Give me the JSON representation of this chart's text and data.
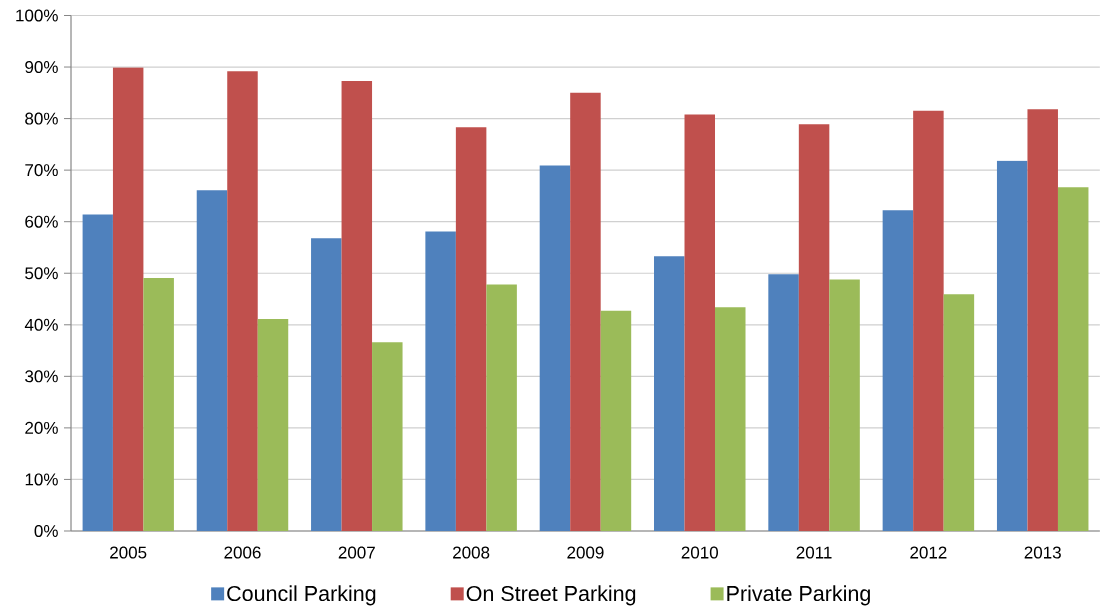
{
  "chart_data": {
    "type": "bar",
    "categories": [
      "2005",
      "2006",
      "2007",
      "2008",
      "2009",
      "2010",
      "2011",
      "2012",
      "2013"
    ],
    "series": [
      {
        "name": "Council Parking",
        "color": "#4f81bd",
        "values": [
          61.4,
          66.1,
          56.8,
          58.1,
          70.9,
          53.3,
          49.8,
          62.2,
          71.8
        ]
      },
      {
        "name": "On Street Parking",
        "color": "#c0504d",
        "values": [
          89.9,
          89.2,
          87.3,
          78.3,
          85.0,
          80.8,
          78.9,
          81.5,
          81.8
        ]
      },
      {
        "name": "Private Parking",
        "color": "#9bbb59",
        "values": [
          49.1,
          41.1,
          36.6,
          47.8,
          42.7,
          43.4,
          48.8,
          45.9,
          66.7
        ]
      }
    ],
    "ylim": [
      0,
      100
    ],
    "yticks": [
      {
        "value": 0,
        "label": "0%"
      },
      {
        "value": 10,
        "label": "10%"
      },
      {
        "value": 20,
        "label": "20%"
      },
      {
        "value": 30,
        "label": "30%"
      },
      {
        "value": 40,
        "label": "40%"
      },
      {
        "value": 50,
        "label": "50%"
      },
      {
        "value": 60,
        "label": "60%"
      },
      {
        "value": 70,
        "label": "70%"
      },
      {
        "value": 80,
        "label": "80%"
      },
      {
        "value": 90,
        "label": "90%"
      },
      {
        "value": 100,
        "label": "100%"
      }
    ],
    "grid": "y",
    "legend": "bottom"
  }
}
